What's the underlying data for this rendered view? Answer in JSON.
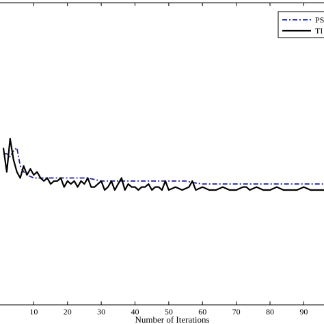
{
  "chart_data": {
    "type": "line",
    "xlabel": "Number of Iterations",
    "ylabel": "",
    "title": "",
    "xlim": [
      0,
      96
    ],
    "ylim": [
      0,
      1
    ],
    "x_ticks": [
      10,
      20,
      30,
      40,
      50,
      60,
      70,
      80,
      90
    ],
    "x_tick_labels": [
      "10",
      "20",
      "30",
      "40",
      "50",
      "60",
      "70",
      "80",
      "90"
    ],
    "grid": false,
    "legend_position": "top-right",
    "series": [
      {
        "name": "PS",
        "color": "#1f1f9e",
        "style": "dashdot",
        "x": [
          1,
          2,
          3,
          4,
          5,
          6,
          7,
          8,
          10,
          14,
          18,
          22,
          26,
          30,
          35,
          40,
          45,
          50,
          55,
          57,
          60,
          65,
          70,
          75,
          80,
          85,
          90,
          96
        ],
        "y": [
          0.5,
          0.5,
          0.49,
          0.51,
          0.52,
          0.46,
          0.44,
          0.43,
          0.42,
          0.42,
          0.42,
          0.42,
          0.42,
          0.41,
          0.41,
          0.41,
          0.41,
          0.41,
          0.41,
          0.405,
          0.4,
          0.4,
          0.4,
          0.4,
          0.4,
          0.4,
          0.4,
          0.4
        ]
      },
      {
        "name": "TI",
        "color": "#000000",
        "style": "solid",
        "x": [
          1,
          2,
          3,
          4,
          5,
          6,
          7,
          8,
          9,
          10,
          11,
          12,
          13,
          14,
          15,
          16,
          17,
          18,
          19,
          20,
          21,
          22,
          23,
          24,
          25,
          26,
          27,
          28,
          29,
          30,
          31,
          32,
          33,
          34,
          35,
          36,
          37,
          38,
          39,
          40,
          41,
          42,
          43,
          44,
          45,
          46,
          47,
          48,
          49,
          50,
          52,
          54,
          56,
          57,
          58,
          60,
          62,
          64,
          66,
          68,
          70,
          72,
          73,
          74,
          76,
          78,
          80,
          82,
          84,
          86,
          88,
          90,
          92,
          94,
          96
        ],
        "y": [
          0.52,
          0.44,
          0.55,
          0.48,
          0.44,
          0.42,
          0.46,
          0.43,
          0.45,
          0.43,
          0.44,
          0.42,
          0.41,
          0.42,
          0.4,
          0.41,
          0.41,
          0.42,
          0.39,
          0.41,
          0.4,
          0.41,
          0.39,
          0.41,
          0.4,
          0.42,
          0.39,
          0.39,
          0.4,
          0.41,
          0.38,
          0.39,
          0.41,
          0.38,
          0.4,
          0.42,
          0.38,
          0.4,
          0.39,
          0.39,
          0.38,
          0.39,
          0.39,
          0.4,
          0.38,
          0.39,
          0.39,
          0.38,
          0.41,
          0.38,
          0.39,
          0.38,
          0.39,
          0.41,
          0.38,
          0.39,
          0.38,
          0.38,
          0.39,
          0.38,
          0.38,
          0.39,
          0.39,
          0.38,
          0.39,
          0.38,
          0.38,
          0.39,
          0.38,
          0.38,
          0.38,
          0.39,
          0.38,
          0.38,
          0.38
        ]
      }
    ]
  }
}
